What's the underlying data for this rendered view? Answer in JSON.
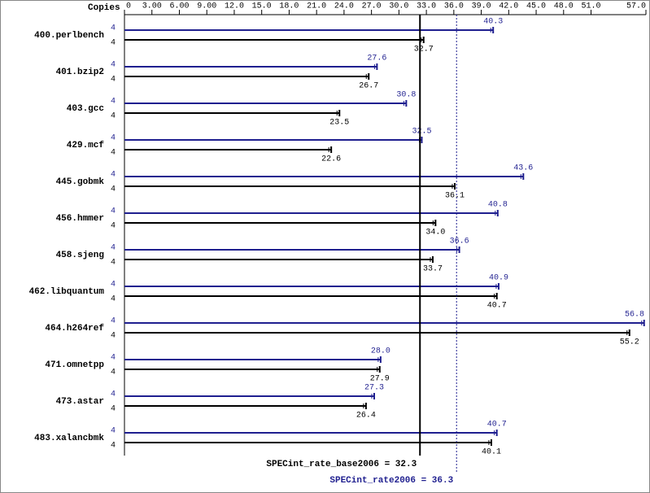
{
  "chart_data": {
    "type": "spec_bars",
    "copies_label": "Copies",
    "categories": [
      "400.perlbench",
      "401.bzip2",
      "403.gcc",
      "429.mcf",
      "445.gobmk",
      "456.hmmer",
      "458.sjeng",
      "462.libquantum",
      "464.h264ref",
      "471.omnetpp",
      "473.astar",
      "483.xalancbmk"
    ],
    "series": [
      {
        "color": "#1f1f8f",
        "copies": [
          "4",
          "4",
          "4",
          "4",
          "4",
          "4",
          "4",
          "4",
          "4",
          "4",
          "4",
          "4"
        ],
        "values": [
          40.3,
          27.6,
          30.8,
          32.5,
          43.6,
          40.8,
          36.6,
          40.9,
          56.8,
          28.0,
          27.3,
          40.7
        ],
        "value_labels": [
          "40.3",
          "27.6",
          "30.8",
          "32.5",
          "43.6",
          "40.8",
          "36.6",
          "40.9",
          "56.8",
          "28.0",
          "27.3",
          "40.7"
        ]
      },
      {
        "color": "#000000",
        "copies": [
          "4",
          "4",
          "4",
          "4",
          "4",
          "4",
          "4",
          "4",
          "4",
          "4",
          "4",
          "4"
        ],
        "values": [
          32.7,
          26.7,
          23.5,
          22.6,
          36.1,
          34.0,
          33.7,
          40.7,
          55.2,
          27.9,
          26.4,
          40.1
        ],
        "value_labels": [
          "32.7",
          "26.7",
          "23.5",
          "22.6",
          "36.1",
          "34.0",
          "33.7",
          "40.7",
          "55.2",
          "27.9",
          "26.4",
          "40.1"
        ]
      }
    ],
    "xlim": [
      0,
      57
    ],
    "xticks": [
      0,
      {
        "value": 3,
        "label": "3.00"
      },
      {
        "value": 6,
        "label": "6.00"
      },
      {
        "value": 9,
        "label": "9.00"
      },
      {
        "value": 12,
        "label": "12.0"
      },
      {
        "value": 15,
        "label": "15.0"
      },
      {
        "value": 18,
        "label": "18.0"
      },
      {
        "value": 21,
        "label": "21.0"
      },
      {
        "value": 24,
        "label": "24.0"
      },
      {
        "value": 27,
        "label": "27.0"
      },
      {
        "value": 30,
        "label": "30.0"
      },
      {
        "value": 33,
        "label": "33.0"
      },
      {
        "value": 36,
        "label": "36.0"
      },
      {
        "value": 39,
        "label": "39.0"
      },
      {
        "value": 42,
        "label": "42.0"
      },
      {
        "value": 45,
        "label": "45.0"
      },
      {
        "value": 48,
        "label": "48.0"
      },
      {
        "value": 51,
        "label": "51.0"
      },
      {
        "value": 57,
        "label": "57.0"
      }
    ],
    "reference_lines": [
      {
        "value": 32.3,
        "label": "SPECint_rate_base2006 = 32.3",
        "color": "#000000",
        "style": "solid"
      },
      {
        "value": 36.3,
        "label": "SPECint_rate2006 = 36.3",
        "color": "#1f1f8f",
        "style": "dotted"
      }
    ]
  }
}
